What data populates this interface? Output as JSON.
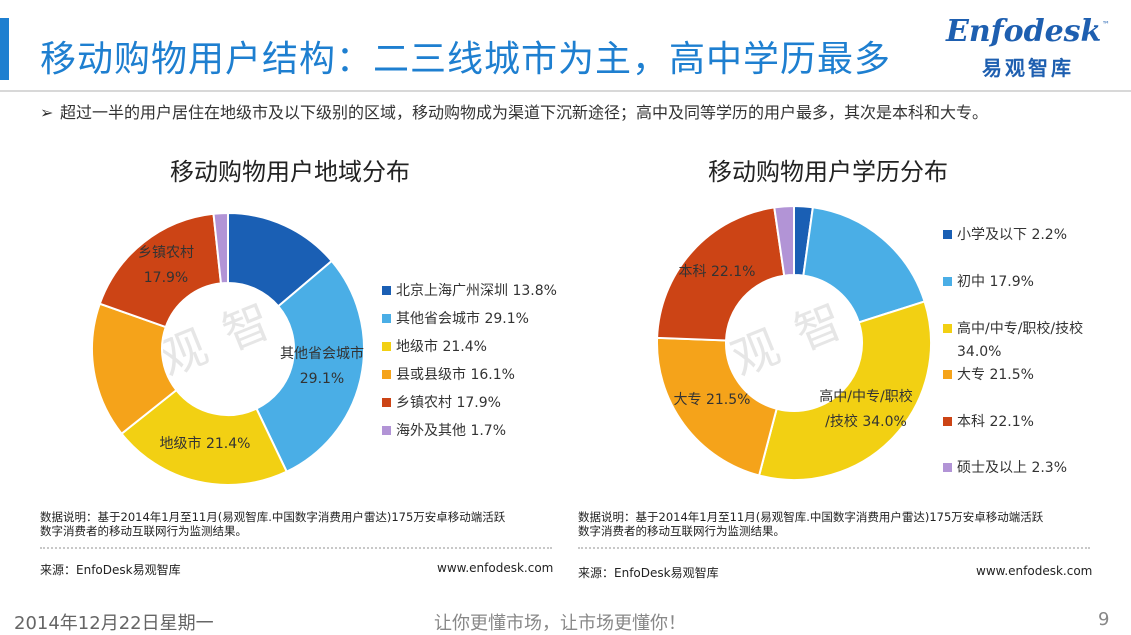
{
  "header": {
    "title": "移动购物用户结构：二三线城市为主，高中学历最多",
    "logo_word": "Enfodesk",
    "logo_tm": "™",
    "logo_sub": "易观智库"
  },
  "summary": {
    "bullet_icon": "➢",
    "text": "超过一半的用户居住在地级市及以下级别的区域，移动购物成为渠道下沉新途径；高中及同等学历的用户最多，其次是本科和大专。"
  },
  "watermark": {
    "text": "易观智库"
  },
  "left_panel": {
    "note": [
      "数据说明：基于2014年1月至11月(易观智库.中国数字消费用户雷达)175万安卓移动端活跃",
      "数字消费者的移动互联网行为监测结果。"
    ],
    "source": "来源：EnfoDesk易观智库",
    "url": "www.enfodesk.com"
  },
  "right_panel": {
    "note": [
      "数据说明：基于2014年1月至11月(易观智库.中国数字消费用户雷达)175万安卓移动端活跃",
      "数字消费者的移动互联网行为监测结果。"
    ],
    "source": "来源：EnfoDesk易观智库",
    "url": "www.enfodesk.com"
  },
  "chart_data": [
    {
      "type": "pie",
      "style": "donut",
      "title": "移动购物用户地域分布",
      "legend_position": "right",
      "series": [
        {
          "name": "北京上海广州深圳",
          "legend": "北京上海广州深圳 13.8%",
          "value": 13.8,
          "color": "#1a5fb4",
          "label_lines": []
        },
        {
          "name": "其他省会城市",
          "legend": "其他省会城市 29.1%",
          "value": 29.1,
          "color": "#4aaee6",
          "label_lines": [
            "其他省会城市",
            "29.1%"
          ]
        },
        {
          "name": "地级市",
          "legend": "地级市 21.4%",
          "value": 21.4,
          "color": "#f2d013",
          "label_lines": [
            "地级市 21.4%"
          ]
        },
        {
          "name": "县或县级市",
          "legend": "县或县级市 16.1%",
          "value": 16.1,
          "color": "#f5a31a",
          "label_lines": []
        },
        {
          "name": "乡镇农村",
          "legend": "乡镇农村 17.9%",
          "value": 17.9,
          "color": "#cc4415",
          "label_lines": [
            "乡镇农村",
            "17.9%"
          ]
        },
        {
          "name": "海外及其他",
          "legend": "海外及其他 1.7%",
          "value": 1.7,
          "color": "#b294d6",
          "label_lines": []
        }
      ]
    },
    {
      "type": "pie",
      "style": "donut",
      "title": "移动购物用户学历分布",
      "legend_position": "right",
      "series": [
        {
          "name": "小学及以下",
          "legend": [
            "小学及以下 2.2%"
          ],
          "value": 2.2,
          "color": "#1a5fb4",
          "label_lines": []
        },
        {
          "name": "初中",
          "legend": [
            "初中 17.9%"
          ],
          "value": 17.9,
          "color": "#4aaee6",
          "label_lines": []
        },
        {
          "name": "高中/中专/职校/技校",
          "legend": [
            "高中/中专/职校/技校",
            "34.0%"
          ],
          "value": 34.0,
          "color": "#f2d013",
          "label_lines": [
            "高中/中专/职校",
            "/技校 34.0%"
          ]
        },
        {
          "name": "大专",
          "legend": [
            "大专 21.5%"
          ],
          "value": 21.5,
          "color": "#f5a31a",
          "label_lines": [
            "大专 21.5%"
          ]
        },
        {
          "name": "本科",
          "legend": [
            "本科 22.1%"
          ],
          "value": 22.1,
          "color": "#cc4415",
          "label_lines": [
            "本科 22.1%"
          ]
        },
        {
          "name": "硕士及以上",
          "legend": [
            "硕士及以上 2.3%"
          ],
          "value": 2.3,
          "color": "#b294d6",
          "label_lines": []
        }
      ]
    }
  ],
  "footer": {
    "date": "2014年12月22日星期一",
    "slogan": "让你更懂市场，让市场更懂你！",
    "page": "9"
  }
}
